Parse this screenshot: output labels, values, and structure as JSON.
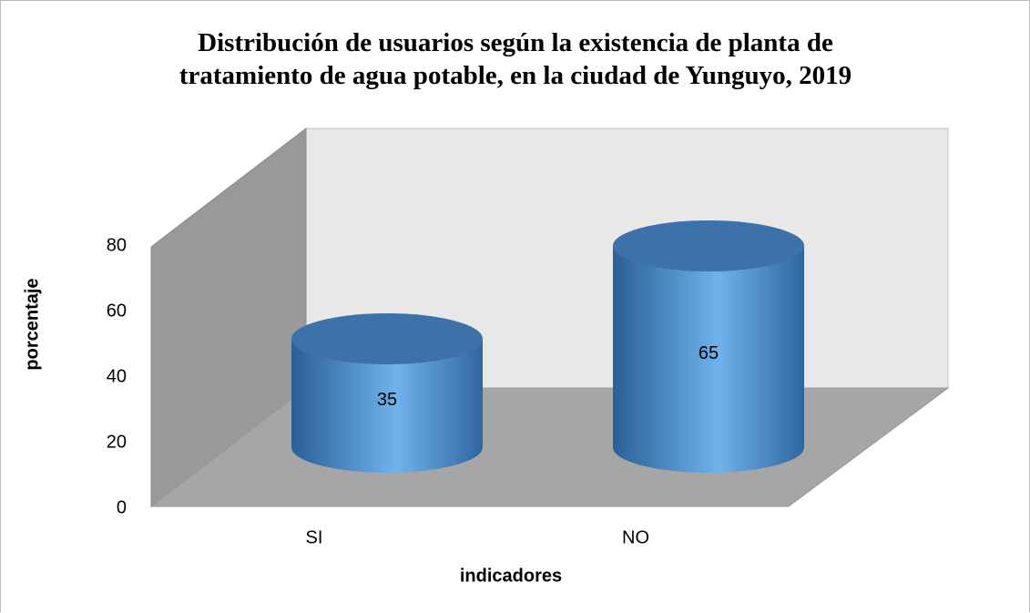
{
  "chart_data": {
    "type": "bar3d-cylinder",
    "title": "Distribución de usuarios según la existencia de planta de tratamiento de agua potable, en la ciudad de Yunguyo, 2019",
    "x_label": "indicadores",
    "y_label": "porcentaje",
    "categories": [
      "SI",
      "NO"
    ],
    "values": [
      35,
      65
    ],
    "color": "#4a8fd4",
    "ylim": [
      0,
      80
    ],
    "yticks": [
      0,
      20,
      40,
      60,
      80
    ],
    "grid": false
  }
}
